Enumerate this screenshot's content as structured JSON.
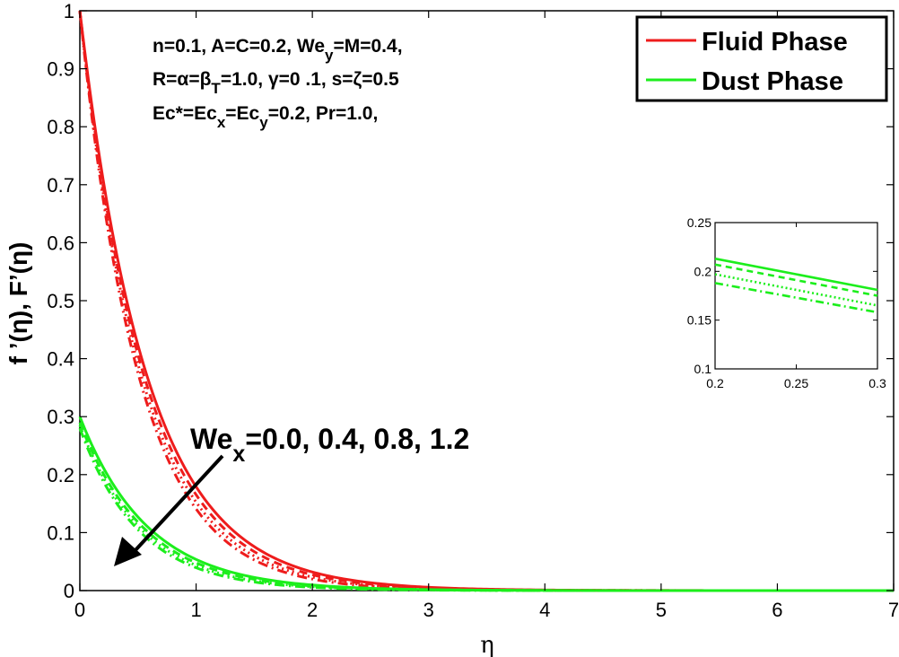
{
  "chart_data": {
    "type": "line",
    "xlabel": "η",
    "ylabel_main": "f ’(η),    F’(η)",
    "xlim": [
      0,
      7
    ],
    "ylim": [
      0,
      1
    ],
    "xticks": [
      "0",
      "1",
      "2",
      "3",
      "4",
      "5",
      "6",
      "7"
    ],
    "yticks": [
      "0",
      "0.1",
      "0.2",
      "0.3",
      "0.4",
      "0.5",
      "0.6",
      "0.7",
      "0.8",
      "0.9",
      "1"
    ],
    "grid": false,
    "legend_position": "top-right",
    "legend": [
      {
        "label": "Fluid Phase",
        "color": "#ee1c1c"
      },
      {
        "label": "Dust Phase",
        "color": "#1cee1c"
      }
    ],
    "parameter_lines": [
      "n=0.1, A=C=0.2, We_y=M=0.4,",
      "R=α=β_T=1.0, γ=0 .1, s=ζ=0.5",
      "Ec*=Ec_x=Ec_y=0.2, Pr=1.0,"
    ],
    "annotation": "We_x=0.0, 0.4, 0.8, 1.2",
    "series": [
      {
        "name": "Fluid Phase",
        "phase": "fluid",
        "We_x": "0.0",
        "style": "solid",
        "y0": 1.0,
        "decay": 1.72
      },
      {
        "name": "Fluid Phase",
        "phase": "fluid",
        "We_x": "0.4",
        "style": "dashed",
        "y0": 1.0,
        "decay": 1.8
      },
      {
        "name": "Fluid Phase",
        "phase": "fluid",
        "We_x": "0.8",
        "style": "dotted",
        "y0": 1.0,
        "decay": 1.88
      },
      {
        "name": "Fluid Phase",
        "phase": "fluid",
        "We_x": "1.2",
        "style": "dashdot",
        "y0": 1.0,
        "decay": 1.96
      },
      {
        "name": "Dust Phase",
        "phase": "dust",
        "We_x": "0.0",
        "style": "solid",
        "y0": 0.3,
        "decay": 1.72
      },
      {
        "name": "Dust Phase",
        "phase": "dust",
        "We_x": "0.4",
        "style": "dashed",
        "y0": 0.29,
        "decay": 1.8
      },
      {
        "name": "Dust Phase",
        "phase": "dust",
        "We_x": "0.8",
        "style": "dotted",
        "y0": 0.285,
        "decay": 1.88
      },
      {
        "name": "Dust Phase",
        "phase": "dust",
        "We_x": "1.2",
        "style": "dashdot",
        "y0": 0.28,
        "decay": 1.96
      }
    ],
    "inset": {
      "xlim": [
        0.2,
        0.3
      ],
      "ylim": [
        0.1,
        0.25
      ],
      "xticks": [
        "0.2",
        "0.25",
        "0.3"
      ],
      "yticks": [
        "0.1",
        "0.15",
        "0.2",
        "0.25"
      ],
      "series": [
        {
          "We_x": "0.0",
          "style": "solid",
          "points": [
            [
              0.2,
              0.213
            ],
            [
              0.3,
              0.181
            ]
          ]
        },
        {
          "We_x": "0.4",
          "style": "dashed",
          "points": [
            [
              0.2,
              0.207
            ],
            [
              0.3,
              0.175
            ]
          ]
        },
        {
          "We_x": "0.8",
          "style": "dotted",
          "points": [
            [
              0.2,
              0.197
            ],
            [
              0.3,
              0.165
            ]
          ]
        },
        {
          "We_x": "1.2",
          "style": "dashdot",
          "points": [
            [
              0.2,
              0.188
            ],
            [
              0.3,
              0.158
            ]
          ]
        }
      ]
    }
  }
}
